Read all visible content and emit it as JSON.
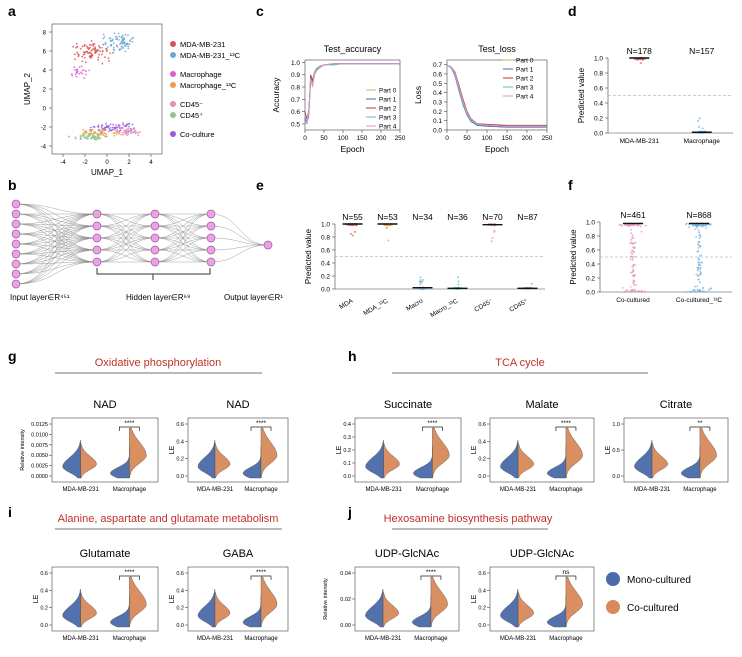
{
  "colors": {
    "mono": "#4a6aa8",
    "co": "#d98a5a",
    "mda": "#d9534f",
    "mda13": "#6aa9d8",
    "macro": "#d65fd2",
    "macro13": "#e8a04a",
    "cd45p": "#e08fb8",
    "cd45n": "#8fc48f",
    "coculture": "#9b59d6",
    "red_title": "#c0312b",
    "node": "#e7a3e4"
  },
  "panels": {
    "a": {
      "letter": "a",
      "xlabel": "UMAP_1",
      "ylabel": "UMAP_2",
      "xticks": [
        "-4",
        "-2",
        "0",
        "2",
        "4"
      ],
      "yticks": [
        "8",
        "6",
        "4",
        "2",
        "0",
        "-2",
        "-4"
      ],
      "legend": [
        {
          "label": "MDA-MB-231",
          "color_key": "mda"
        },
        {
          "label": "MDA-MB-231_¹³C",
          "color_key": "mda13"
        },
        {
          "label": "Macrophage",
          "color_key": "macro"
        },
        {
          "label": "Macrophage_¹³C",
          "color_key": "macro13"
        },
        {
          "label": "CD45⁻",
          "color_key": "cd45p"
        },
        {
          "label": "CD45⁺",
          "color_key": "cd45n"
        },
        {
          "label": "Co-culture",
          "color_key": "coculture"
        }
      ]
    },
    "b": {
      "letter": "b",
      "labels": [
        "Input layer∈R⁴⁵¹",
        "Hidden layer∈R⁶⁹",
        "Output layer∈R¹"
      ]
    },
    "c": {
      "letter": "c",
      "legend": [
        "Part 0",
        "Part 1",
        "Part 2",
        "Part 3",
        "Part 4"
      ],
      "legend_colors": [
        "#d4b06a",
        "#4a6aa8",
        "#c0312b",
        "#5bbfae",
        "#e08fd8"
      ]
    },
    "d": {
      "letter": "d",
      "ylabel": "Predicted value",
      "groups": [
        {
          "label": "MDA-MB-231",
          "n": "N=178"
        },
        {
          "label": "Macrophage",
          "n": "N=157"
        }
      ]
    },
    "e": {
      "letter": "e",
      "ylabel": "Predicted value",
      "groups": [
        {
          "label": "MDA",
          "n": "N=55"
        },
        {
          "label": "MDA_¹³C",
          "n": "N=53"
        },
        {
          "label": "Macro",
          "n": "N=34"
        },
        {
          "label": "Macro_¹³C",
          "n": "N=36"
        },
        {
          "label": "CD45⁻",
          "n": "N=70"
        },
        {
          "label": "CD45⁺",
          "n": "N=87"
        }
      ]
    },
    "f": {
      "letter": "f",
      "ylabel": "Predicted value",
      "groups": [
        {
          "label": "Co-cultured",
          "n": "N=461"
        },
        {
          "label": "Co-cultured_¹³C",
          "n": "N=868"
        }
      ]
    },
    "g": {
      "letter": "g",
      "title": "Oxidative phosphorylation",
      "sub": [
        {
          "name": "NAD",
          "ylabel": "Relative intensity",
          "yticks": [
            "0.0125",
            "0.0100",
            "0.0075",
            "0.0050",
            "0.0025",
            "0.0000"
          ],
          "sig": "****"
        },
        {
          "name": "NAD",
          "ylabel": "LE",
          "yticks": [
            "0.6",
            "0.4",
            "0.2",
            "0.0"
          ],
          "sig": "****"
        }
      ]
    },
    "h": {
      "letter": "h",
      "title": "TCA cycle",
      "sub": [
        {
          "name": "Succinate",
          "ylabel": "LE",
          "yticks": [
            "0.4",
            "0.3",
            "0.2",
            "0.1",
            "0.0"
          ],
          "sig": "****"
        },
        {
          "name": "Malate",
          "ylabel": "LE",
          "yticks": [
            "0.6",
            "0.4",
            "0.2",
            "0.0"
          ],
          "sig": "****"
        },
        {
          "name": "Citrate",
          "ylabel": "LE",
          "yticks": [
            "1.0",
            "0.5",
            "0.0"
          ],
          "sig": "**"
        }
      ]
    },
    "i": {
      "letter": "i",
      "title": "Alanine, aspartate and glutamate metabolism",
      "sub": [
        {
          "name": "Glutamate",
          "ylabel": "LE",
          "yticks": [
            "0.6",
            "0.4",
            "0.2",
            "0.0"
          ],
          "sig": "****"
        },
        {
          "name": "GABA",
          "ylabel": "LE",
          "yticks": [
            "0.6",
            "0.4",
            "0.2",
            "0.0"
          ],
          "sig": "****"
        }
      ]
    },
    "j": {
      "letter": "j",
      "title": "Hexosamine biosynthesis pathway",
      "sub": [
        {
          "name": "UDP-GlcNAc",
          "ylabel": "Relative intensity",
          "yticks": [
            "0.04",
            "0.02",
            "0.00"
          ],
          "sig": "****"
        },
        {
          "name": "UDP-GlcNAc",
          "ylabel": "LE",
          "yticks": [
            "0.6",
            "0.4",
            "0.2",
            "0.0"
          ],
          "sig": "ns"
        }
      ]
    }
  },
  "violin_xlabels": [
    "MDA-MB-231",
    "Macrophage"
  ],
  "legend_bottom": [
    "Mono-cultured",
    "Co-cultured"
  ],
  "chart_data": [
    {
      "type": "line",
      "title": "Test_accuracy",
      "xlabel": "Epoch",
      "ylabel": "Accuracy",
      "xticks": [
        "0",
        "50",
        "100",
        "150",
        "200",
        "250"
      ],
      "yticks": [
        "1.0",
        "0.9",
        "0.8",
        "0.7",
        "0.6",
        "0.5"
      ],
      "xlim": [
        0,
        250
      ],
      "ylim": [
        0.45,
        1.02
      ],
      "series": [
        {
          "name": "Part 0",
          "x": [
            0,
            5,
            10,
            15,
            20,
            25,
            30,
            40,
            50,
            75,
            100,
            150,
            200,
            250
          ],
          "values": [
            0.58,
            0.52,
            0.55,
            0.85,
            0.8,
            0.9,
            0.93,
            0.96,
            0.98,
            0.99,
            0.99,
            0.99,
            0.99,
            0.99
          ]
        },
        {
          "name": "Part 1",
          "x": [
            0,
            5,
            10,
            15,
            20,
            25,
            30,
            40,
            50,
            75,
            100,
            150,
            200,
            250
          ],
          "values": [
            0.55,
            0.5,
            0.6,
            0.88,
            0.86,
            0.92,
            0.95,
            0.97,
            0.98,
            0.99,
            0.99,
            0.99,
            0.99,
            0.99
          ]
        },
        {
          "name": "Part 2",
          "x": [
            0,
            5,
            10,
            15,
            20,
            25,
            30,
            40,
            50,
            75,
            100,
            150,
            200,
            250
          ],
          "values": [
            0.6,
            0.54,
            0.58,
            0.9,
            0.84,
            0.91,
            0.94,
            0.97,
            0.98,
            0.99,
            0.99,
            0.99,
            0.99,
            0.99
          ]
        },
        {
          "name": "Part 3",
          "x": [
            0,
            5,
            10,
            15,
            20,
            25,
            30,
            40,
            50,
            75,
            100,
            150,
            200,
            250
          ],
          "values": [
            0.56,
            0.53,
            0.62,
            0.87,
            0.82,
            0.92,
            0.95,
            0.97,
            0.98,
            0.98,
            0.99,
            0.99,
            0.99,
            0.99
          ]
        },
        {
          "name": "Part 4",
          "x": [
            0,
            5,
            10,
            15,
            20,
            25,
            30,
            40,
            50,
            75,
            100,
            150,
            200,
            250
          ],
          "values": [
            0.57,
            0.51,
            0.57,
            0.86,
            0.83,
            0.9,
            0.94,
            0.96,
            0.98,
            0.99,
            0.99,
            0.99,
            0.99,
            0.99
          ]
        }
      ]
    },
    {
      "type": "line",
      "title": "Test_loss",
      "xlabel": "Epoch",
      "ylabel": "Loss",
      "xticks": [
        "0",
        "50",
        "100",
        "150",
        "200",
        "250"
      ],
      "yticks": [
        "0.7",
        "0.6",
        "0.5",
        "0.4",
        "0.3",
        "0.2",
        "0.1",
        "0.0"
      ],
      "xlim": [
        0,
        250
      ],
      "ylim": [
        0,
        0.75
      ],
      "series": [
        {
          "name": "Part 0",
          "x": [
            0,
            10,
            20,
            30,
            40,
            50,
            60,
            75,
            100,
            150,
            200,
            250
          ],
          "values": [
            0.69,
            0.68,
            0.6,
            0.45,
            0.3,
            0.18,
            0.1,
            0.06,
            0.05,
            0.04,
            0.04,
            0.04
          ]
        },
        {
          "name": "Part 1",
          "x": [
            0,
            10,
            20,
            30,
            40,
            50,
            60,
            75,
            100,
            150,
            200,
            250
          ],
          "values": [
            0.69,
            0.67,
            0.58,
            0.42,
            0.27,
            0.16,
            0.09,
            0.05,
            0.04,
            0.03,
            0.03,
            0.03
          ]
        },
        {
          "name": "Part 2",
          "x": [
            0,
            10,
            20,
            30,
            40,
            50,
            60,
            75,
            100,
            150,
            200,
            250
          ],
          "values": [
            0.69,
            0.68,
            0.62,
            0.48,
            0.33,
            0.2,
            0.12,
            0.07,
            0.06,
            0.05,
            0.05,
            0.05
          ]
        },
        {
          "name": "Part 3",
          "x": [
            0,
            10,
            20,
            30,
            40,
            50,
            60,
            75,
            100,
            150,
            200,
            250
          ],
          "values": [
            0.69,
            0.67,
            0.59,
            0.44,
            0.28,
            0.17,
            0.1,
            0.06,
            0.05,
            0.04,
            0.04,
            0.04
          ]
        },
        {
          "name": "Part 4",
          "x": [
            0,
            10,
            20,
            30,
            40,
            50,
            60,
            75,
            100,
            150,
            200,
            250
          ],
          "values": [
            0.69,
            0.68,
            0.61,
            0.46,
            0.31,
            0.19,
            0.11,
            0.07,
            0.05,
            0.04,
            0.04,
            0.04
          ]
        }
      ]
    },
    {
      "type": "scatter",
      "title": "d: Predicted value",
      "ylabel": "Predicted value",
      "yticks": [
        "1.0",
        "0.8",
        "0.6",
        "0.4",
        "0.2",
        "0.0"
      ],
      "ylim": [
        0,
        1
      ],
      "threshold": 0.5,
      "categories": [
        "MDA-MB-231",
        "Macrophage"
      ],
      "series": [
        {
          "name": "median",
          "values": [
            1.0,
            0.01
          ]
        }
      ]
    },
    {
      "type": "scatter",
      "title": "e: Predicted value",
      "ylabel": "Predicted value",
      "yticks": [
        "1.0",
        "0.8",
        "0.6",
        "0.4",
        "0.2",
        "0.0"
      ],
      "ylim": [
        0,
        1
      ],
      "threshold": 0.5,
      "categories": [
        "MDA",
        "MDA_¹³C",
        "Macro",
        "Macro_¹³C",
        "CD45⁻",
        "CD45⁺"
      ],
      "series": [
        {
          "name": "median",
          "values": [
            1.0,
            1.0,
            0.02,
            0.01,
            0.99,
            0.01
          ]
        }
      ]
    },
    {
      "type": "scatter",
      "title": "f: Predicted value",
      "ylabel": "Predicted value",
      "yticks": [
        "1.0",
        "0.8",
        "0.6",
        "0.4",
        "0.2",
        "0.0"
      ],
      "ylim": [
        0,
        1
      ],
      "threshold": 0.5,
      "categories": [
        "Co-cultured",
        "Co-cultured_¹³C"
      ],
      "series": [
        {
          "name": "median",
          "values": [
            0.98,
            0.98
          ]
        }
      ]
    }
  ]
}
